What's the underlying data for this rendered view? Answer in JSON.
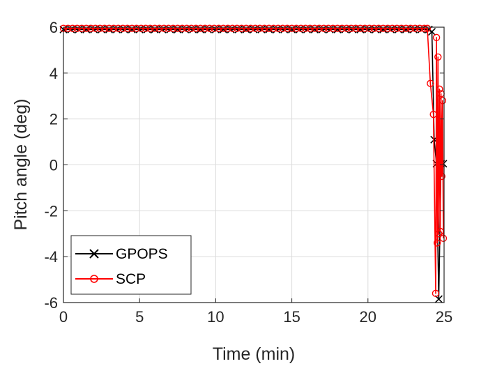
{
  "chart_data": {
    "type": "line",
    "xlabel": "Time (min)",
    "ylabel": "Pitch angle (deg)",
    "xlim": [
      0,
      25
    ],
    "ylim": [
      -6,
      6
    ],
    "xticks": [
      "0",
      "5",
      "10",
      "15",
      "20",
      "25"
    ],
    "yticks": [
      "-6",
      "-4",
      "-2",
      "0",
      "2",
      "4",
      "6"
    ],
    "grid": true,
    "legend_position": "bottom-left",
    "series": [
      {
        "name": "GPOPS",
        "color": "#000000",
        "marker": "x",
        "x": [
          0,
          0.5,
          1,
          1.5,
          2,
          2.5,
          3,
          3.5,
          4,
          4.5,
          5,
          5.5,
          6,
          6.5,
          7,
          7.5,
          8,
          8.5,
          9,
          9.5,
          10,
          10.5,
          11,
          11.5,
          12,
          12.5,
          13,
          13.5,
          14,
          14.5,
          15,
          15.5,
          16,
          16.5,
          17,
          17.5,
          18,
          18.5,
          19,
          19.5,
          20,
          20.5,
          21,
          21.5,
          22,
          22.5,
          23,
          23.5,
          24.0,
          24.2,
          24.35,
          24.5,
          24.65,
          24.8,
          24.95
        ],
        "y": [
          5.9,
          5.9,
          5.9,
          5.9,
          5.9,
          5.9,
          5.9,
          5.9,
          5.9,
          5.9,
          5.9,
          5.9,
          5.9,
          5.9,
          5.9,
          5.9,
          5.9,
          5.9,
          5.9,
          5.9,
          5.9,
          5.9,
          5.9,
          5.9,
          5.9,
          5.9,
          5.9,
          5.9,
          5.9,
          5.9,
          5.9,
          5.9,
          5.9,
          5.9,
          5.9,
          5.9,
          5.9,
          5.9,
          5.9,
          5.9,
          5.9,
          5.9,
          5.9,
          5.9,
          5.9,
          5.9,
          5.9,
          5.9,
          5.9,
          5.8,
          1.1,
          0.05,
          -5.85,
          0.05,
          0.05
        ]
      },
      {
        "name": "SCP",
        "color": "#ff0000",
        "marker": "o",
        "x": [
          0,
          0.3,
          0.6,
          0.9,
          1.2,
          1.5,
          1.8,
          2.1,
          2.4,
          2.7,
          3.0,
          3.3,
          3.6,
          3.9,
          4.2,
          4.5,
          4.8,
          5.1,
          5.4,
          5.7,
          6.0,
          6.3,
          6.6,
          6.9,
          7.2,
          7.5,
          7.8,
          8.1,
          8.4,
          8.7,
          9.0,
          9.3,
          9.6,
          9.9,
          10.2,
          10.5,
          10.8,
          11.1,
          11.4,
          11.7,
          12.0,
          12.3,
          12.6,
          12.9,
          13.2,
          13.5,
          13.8,
          14.1,
          14.4,
          14.7,
          15.0,
          15.3,
          15.6,
          15.9,
          16.2,
          16.5,
          16.8,
          17.1,
          17.4,
          17.7,
          18.0,
          18.3,
          18.6,
          18.9,
          19.2,
          19.5,
          19.8,
          20.1,
          20.4,
          20.7,
          21.0,
          21.3,
          21.6,
          21.9,
          22.2,
          22.5,
          22.8,
          23.1,
          23.4,
          23.7,
          23.9,
          24.1,
          24.3,
          24.45,
          24.5,
          24.55,
          24.6,
          24.65,
          24.7,
          24.75,
          24.8,
          24.85,
          24.9,
          24.95
        ],
        "y": [
          5.95,
          5.95,
          5.95,
          5.95,
          5.95,
          5.95,
          5.95,
          5.95,
          5.95,
          5.95,
          5.95,
          5.95,
          5.95,
          5.95,
          5.95,
          5.95,
          5.95,
          5.95,
          5.95,
          5.95,
          5.95,
          5.95,
          5.95,
          5.95,
          5.95,
          5.95,
          5.95,
          5.95,
          5.95,
          5.95,
          5.95,
          5.95,
          5.95,
          5.95,
          5.95,
          5.95,
          5.95,
          5.95,
          5.95,
          5.95,
          5.95,
          5.95,
          5.95,
          5.95,
          5.95,
          5.95,
          5.95,
          5.95,
          5.95,
          5.95,
          5.95,
          5.95,
          5.95,
          5.95,
          5.95,
          5.95,
          5.95,
          5.95,
          5.95,
          5.95,
          5.95,
          5.95,
          5.95,
          5.95,
          5.95,
          5.95,
          5.95,
          5.95,
          5.95,
          5.95,
          5.95,
          5.95,
          5.95,
          5.95,
          5.95,
          5.95,
          5.95,
          5.95,
          5.95,
          5.95,
          5.95,
          3.55,
          2.2,
          -5.6,
          5.55,
          -3.4,
          4.7,
          -3.0,
          3.3,
          -2.9,
          3.1,
          -0.5,
          2.8,
          -3.2
        ]
      }
    ]
  }
}
